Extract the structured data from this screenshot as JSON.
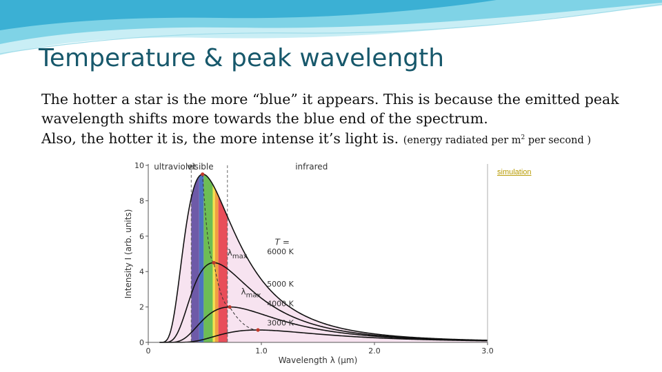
{
  "slide": {
    "title": "Temperature & peak wavelength",
    "paragraph1": "The hotter a star is the more “blue” it appears. This is because the emitted peak wavelength shifts more towards the blue end of the spectrum.",
    "paragraph2_main": "Also, the hotter it is, the more intense it’s light is.",
    "paragraph2_note_pre": "(energy radiated per m",
    "paragraph2_note_sup": "2",
    "paragraph2_note_post": " per second )",
    "simulation_link": "simulation"
  },
  "colors": {
    "title": "#17586b",
    "curve": "#111111",
    "region_fill": "#f7e3f0",
    "peak_marker": "#c0392b",
    "link": "#b79a00"
  },
  "chart_data": {
    "type": "line",
    "xlabel": "Wavelength λ (μm)",
    "ylabel": "Intensity I (arb. units)",
    "xlim": [
      0,
      3.0
    ],
    "ylim": [
      0,
      10
    ],
    "x_ticks": [
      {
        "value": 0,
        "label": "0"
      },
      {
        "value": 1.0,
        "label": "1.0"
      },
      {
        "value": 2.0,
        "label": "2.0"
      },
      {
        "value": 3.0,
        "label": "3.0"
      }
    ],
    "y_ticks": [
      {
        "value": 0,
        "label": "0"
      },
      {
        "value": 2,
        "label": "2"
      },
      {
        "value": 4,
        "label": "4"
      },
      {
        "value": 6,
        "label": "6"
      },
      {
        "value": 8,
        "label": "8"
      },
      {
        "value": 10,
        "label": "10"
      }
    ],
    "regions": [
      {
        "label": "ultraviolet",
        "x_start": 0,
        "x_end": 0.38
      },
      {
        "label": "visible",
        "x_start": 0.38,
        "x_end": 0.7
      },
      {
        "label": "infrared",
        "x_start": 0.7,
        "x_end": 3.0
      }
    ],
    "visible_bands": [
      {
        "x_start": 0.38,
        "x_end": 0.45,
        "color": "#6e5aa8"
      },
      {
        "x_start": 0.45,
        "x_end": 0.49,
        "color": "#4b73c0"
      },
      {
        "x_start": 0.49,
        "x_end": 0.57,
        "color": "#6dbd55"
      },
      {
        "x_start": 0.57,
        "x_end": 0.59,
        "color": "#f2e34b"
      },
      {
        "x_start": 0.59,
        "x_end": 0.62,
        "color": "#f0a040"
      },
      {
        "x_start": 0.62,
        "x_end": 0.7,
        "color": "#e84e5a"
      }
    ],
    "series_header": "T =",
    "series": [
      {
        "name": "6000 K",
        "temperature": 6000,
        "peak_x": 0.48,
        "peak_y": 9.5
      },
      {
        "name": "5000 K",
        "temperature": 5000,
        "peak_x": 0.58,
        "peak_y": 4.5
      },
      {
        "name": "4000 K",
        "temperature": 4000,
        "peak_x": 0.72,
        "peak_y": 2.0
      },
      {
        "name": "3000 K",
        "temperature": 3000,
        "peak_x": 0.97,
        "peak_y": 0.7
      }
    ],
    "annotations": [
      {
        "text": "λ",
        "sub": "max",
        "near": "6000 K"
      },
      {
        "text": "λ",
        "sub": "max",
        "near": "5000 K"
      }
    ],
    "grid": false
  }
}
